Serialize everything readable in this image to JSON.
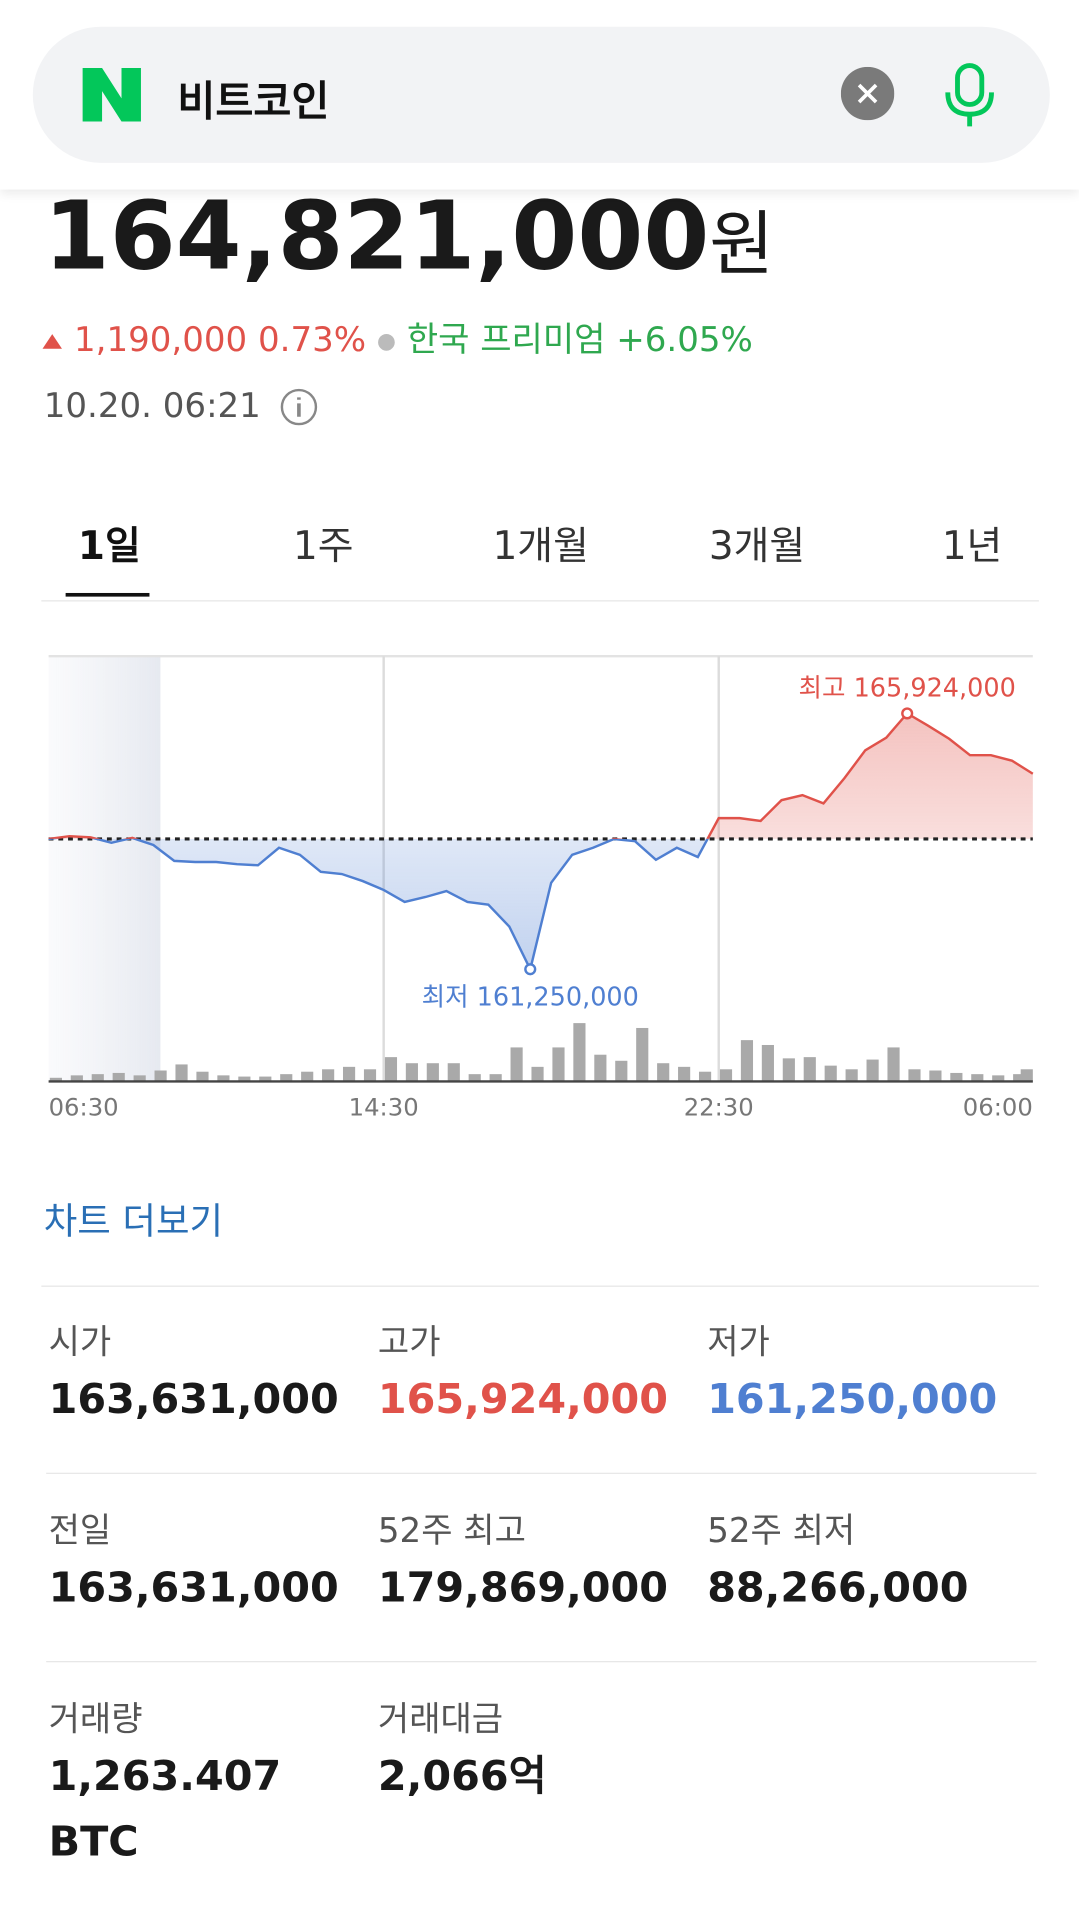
{
  "search": {
    "query": "비트코인"
  },
  "price": {
    "value": "164,821,000",
    "unit": "원"
  },
  "change": {
    "amount": "1,190,000",
    "percent": "0.73%",
    "premium_label": "한국 프리미엄",
    "premium": "+6.05%"
  },
  "timestamp": "10.20. 06:21",
  "tabs": [
    "1일",
    "1주",
    "1개월",
    "3개월",
    "1년"
  ],
  "chart_data": {
    "type": "line",
    "values": [
      163631000,
      163680000,
      163660000,
      163560000,
      163650000,
      163520000,
      163230000,
      163210000,
      163210000,
      163170000,
      163150000,
      163470000,
      163340000,
      163030000,
      162990000,
      162860000,
      162700000,
      162480000,
      162570000,
      162680000,
      162480000,
      162430000,
      162030000,
      161250000,
      162830000,
      163340000,
      163470000,
      163630000,
      163590000,
      163250000,
      163470000,
      163300000,
      164010000,
      164010000,
      163960000,
      164340000,
      164430000,
      164280000,
      164740000,
      165250000,
      165480000,
      165924000,
      165700000,
      165460000,
      165160000,
      165160000,
      165060000,
      164821000
    ],
    "xlim": [
      0,
      47
    ],
    "xticks": [
      {
        "value": 0,
        "label": "06:30"
      },
      {
        "value": 16,
        "label": "14:30"
      },
      {
        "value": 32,
        "label": "22:30"
      },
      {
        "value": 47,
        "label": "06:00"
      }
    ],
    "ylim": [
      160710000,
      166970000
    ],
    "baseline": 163631000,
    "up_color": "#e0524a",
    "down_color": "#4f7fd1",
    "high_label": "최고 165,924,000",
    "low_label": "최저 161,250,000",
    "volume": [
      3,
      5,
      6,
      7,
      5,
      9,
      14,
      8,
      5,
      4,
      4,
      6,
      8,
      10,
      12,
      10,
      20,
      15,
      15,
      15,
      6,
      6,
      28,
      12,
      28,
      48,
      22,
      17,
      44,
      15,
      12,
      8,
      10,
      34,
      30,
      19,
      20,
      13,
      10,
      18,
      28,
      10,
      9,
      7,
      6,
      5,
      6,
      10
    ],
    "volume_color": "#a9a9a9"
  },
  "more_link": "차트 더보기",
  "stats": [
    {
      "label": "시가",
      "value": "163,631,000",
      "color": "#1a1a1a"
    },
    {
      "label": "고가",
      "value": "165,924,000",
      "color": "#e0524a"
    },
    {
      "label": "저가",
      "value": "161,250,000",
      "color": "#4f7fd1"
    },
    {
      "label": "전일",
      "value": "163,631,000",
      "color": "#1a1a1a"
    },
    {
      "label": "52주 최고",
      "value": "179,869,000",
      "color": "#1a1a1a"
    },
    {
      "label": "52주 최저",
      "value": "88,266,000",
      "color": "#1a1a1a"
    },
    {
      "label": "거래량",
      "value": "1,263.407 BTC",
      "color": "#1a1a1a"
    },
    {
      "label": "거래대금",
      "value": "2,066억",
      "color": "#1a1a1a"
    }
  ]
}
